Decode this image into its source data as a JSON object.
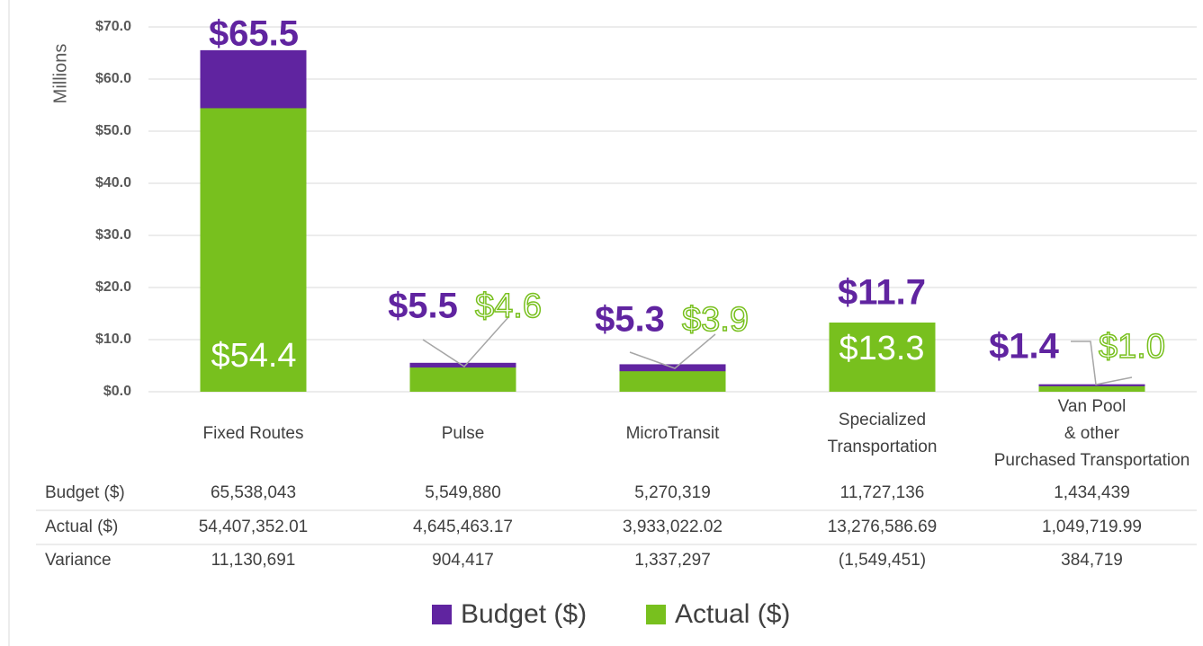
{
  "chart_data": {
    "type": "bar",
    "overlap": true,
    "y_axis_label": "Millions",
    "categories": [
      "Fixed Routes",
      "Pulse",
      "MicroTransit",
      "Specialized Transportation",
      "Van Pool & other Purchased Transportation"
    ],
    "series": [
      {
        "name": "Budget ($)",
        "color": "#6024a0",
        "values": [
          65.538043,
          5.54988,
          5.270319,
          11.727136,
          1.434439
        ],
        "value_labels": [
          "$65.5",
          "$5.5",
          "$5.3",
          "$11.7",
          "$1.4"
        ]
      },
      {
        "name": "Actual ($)",
        "color": "#78c01e",
        "values": [
          54.40735201,
          4.64546317,
          3.93302202,
          13.27658669,
          1.04971999
        ],
        "value_labels": [
          "$54.4",
          "$4.6",
          "$3.9",
          "$13.3",
          "$1.0"
        ]
      }
    ],
    "ylim": [
      0,
      70
    ],
    "yticks": [
      {
        "value": 0,
        "label": "$0.0"
      },
      {
        "value": 10,
        "label": "$10.0"
      },
      {
        "value": 20,
        "label": "$20.0"
      },
      {
        "value": 30,
        "label": "$30.0"
      },
      {
        "value": 40,
        "label": "$40.0"
      },
      {
        "value": 50,
        "label": "$50.0"
      },
      {
        "value": 60,
        "label": "$60.0"
      },
      {
        "value": 70,
        "label": "$70.0"
      }
    ],
    "grid": true,
    "legend": "bottom",
    "data_table": [
      {
        "name": "Budget ($)",
        "cells": [
          "65,538,043",
          "5,549,880",
          "5,270,319",
          "11,727,136",
          "1,434,439"
        ]
      },
      {
        "name": "Actual ($)",
        "cells": [
          "54,407,352.01",
          "4,645,463.17",
          "3,933,022.02",
          "13,276,586.69",
          "1,049,719.99"
        ]
      },
      {
        "name": "Variance",
        "cells": [
          "11,130,691",
          "904,417",
          "1,337,297",
          "(1,549,451)",
          "384,719"
        ]
      }
    ]
  }
}
